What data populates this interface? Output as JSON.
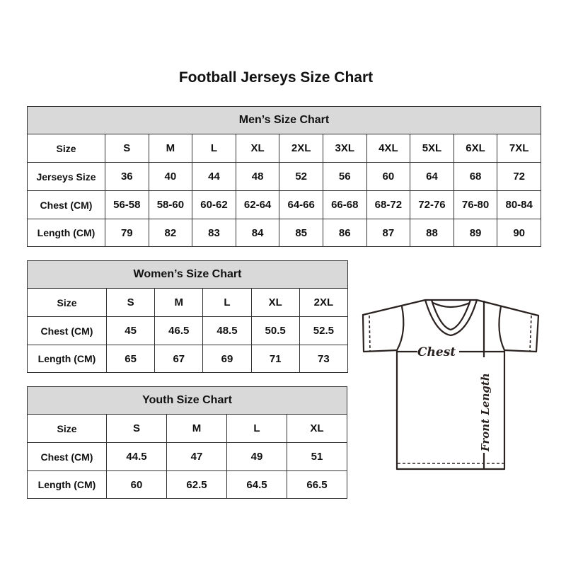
{
  "title": "Football Jerseys Size Chart",
  "tables": {
    "men": {
      "heading": "Men’s Size Chart",
      "rows": [
        {
          "label": "Size",
          "values": [
            "S",
            "M",
            "L",
            "XL",
            "2XL",
            "3XL",
            "4XL",
            "5XL",
            "6XL",
            "7XL"
          ]
        },
        {
          "label": "Jerseys Size",
          "values": [
            "36",
            "40",
            "44",
            "48",
            "52",
            "56",
            "60",
            "64",
            "68",
            "72"
          ]
        },
        {
          "label": "Chest (CM)",
          "values": [
            "56-58",
            "58-60",
            "60-62",
            "62-64",
            "64-66",
            "66-68",
            "68-72",
            "72-76",
            "76-80",
            "80-84"
          ]
        },
        {
          "label": "Length (CM)",
          "values": [
            "79",
            "82",
            "83",
            "84",
            "85",
            "86",
            "87",
            "88",
            "89",
            "90"
          ]
        }
      ]
    },
    "women": {
      "heading": "Women’s Size Chart",
      "rows": [
        {
          "label": "Size",
          "values": [
            "S",
            "M",
            "L",
            "XL",
            "2XL"
          ]
        },
        {
          "label": "Chest (CM)",
          "values": [
            "45",
            "46.5",
            "48.5",
            "50.5",
            "52.5"
          ]
        },
        {
          "label": "Length (CM)",
          "values": [
            "65",
            "67",
            "69",
            "71",
            "73"
          ]
        }
      ]
    },
    "youth": {
      "heading": "Youth Size Chart",
      "rows": [
        {
          "label": "Size",
          "values": [
            "S",
            "M",
            "L",
            "XL"
          ]
        },
        {
          "label": "Chest (CM)",
          "values": [
            "44.5",
            "47",
            "49",
            "51"
          ]
        },
        {
          "label": "Length (CM)",
          "values": [
            "60",
            "62.5",
            "64.5",
            "66.5"
          ]
        }
      ]
    }
  },
  "diagram": {
    "chest_label": "Chest",
    "length_label": "Front Length"
  },
  "colors": {
    "header_bg": "#d9d9d9",
    "border": "#333333"
  }
}
